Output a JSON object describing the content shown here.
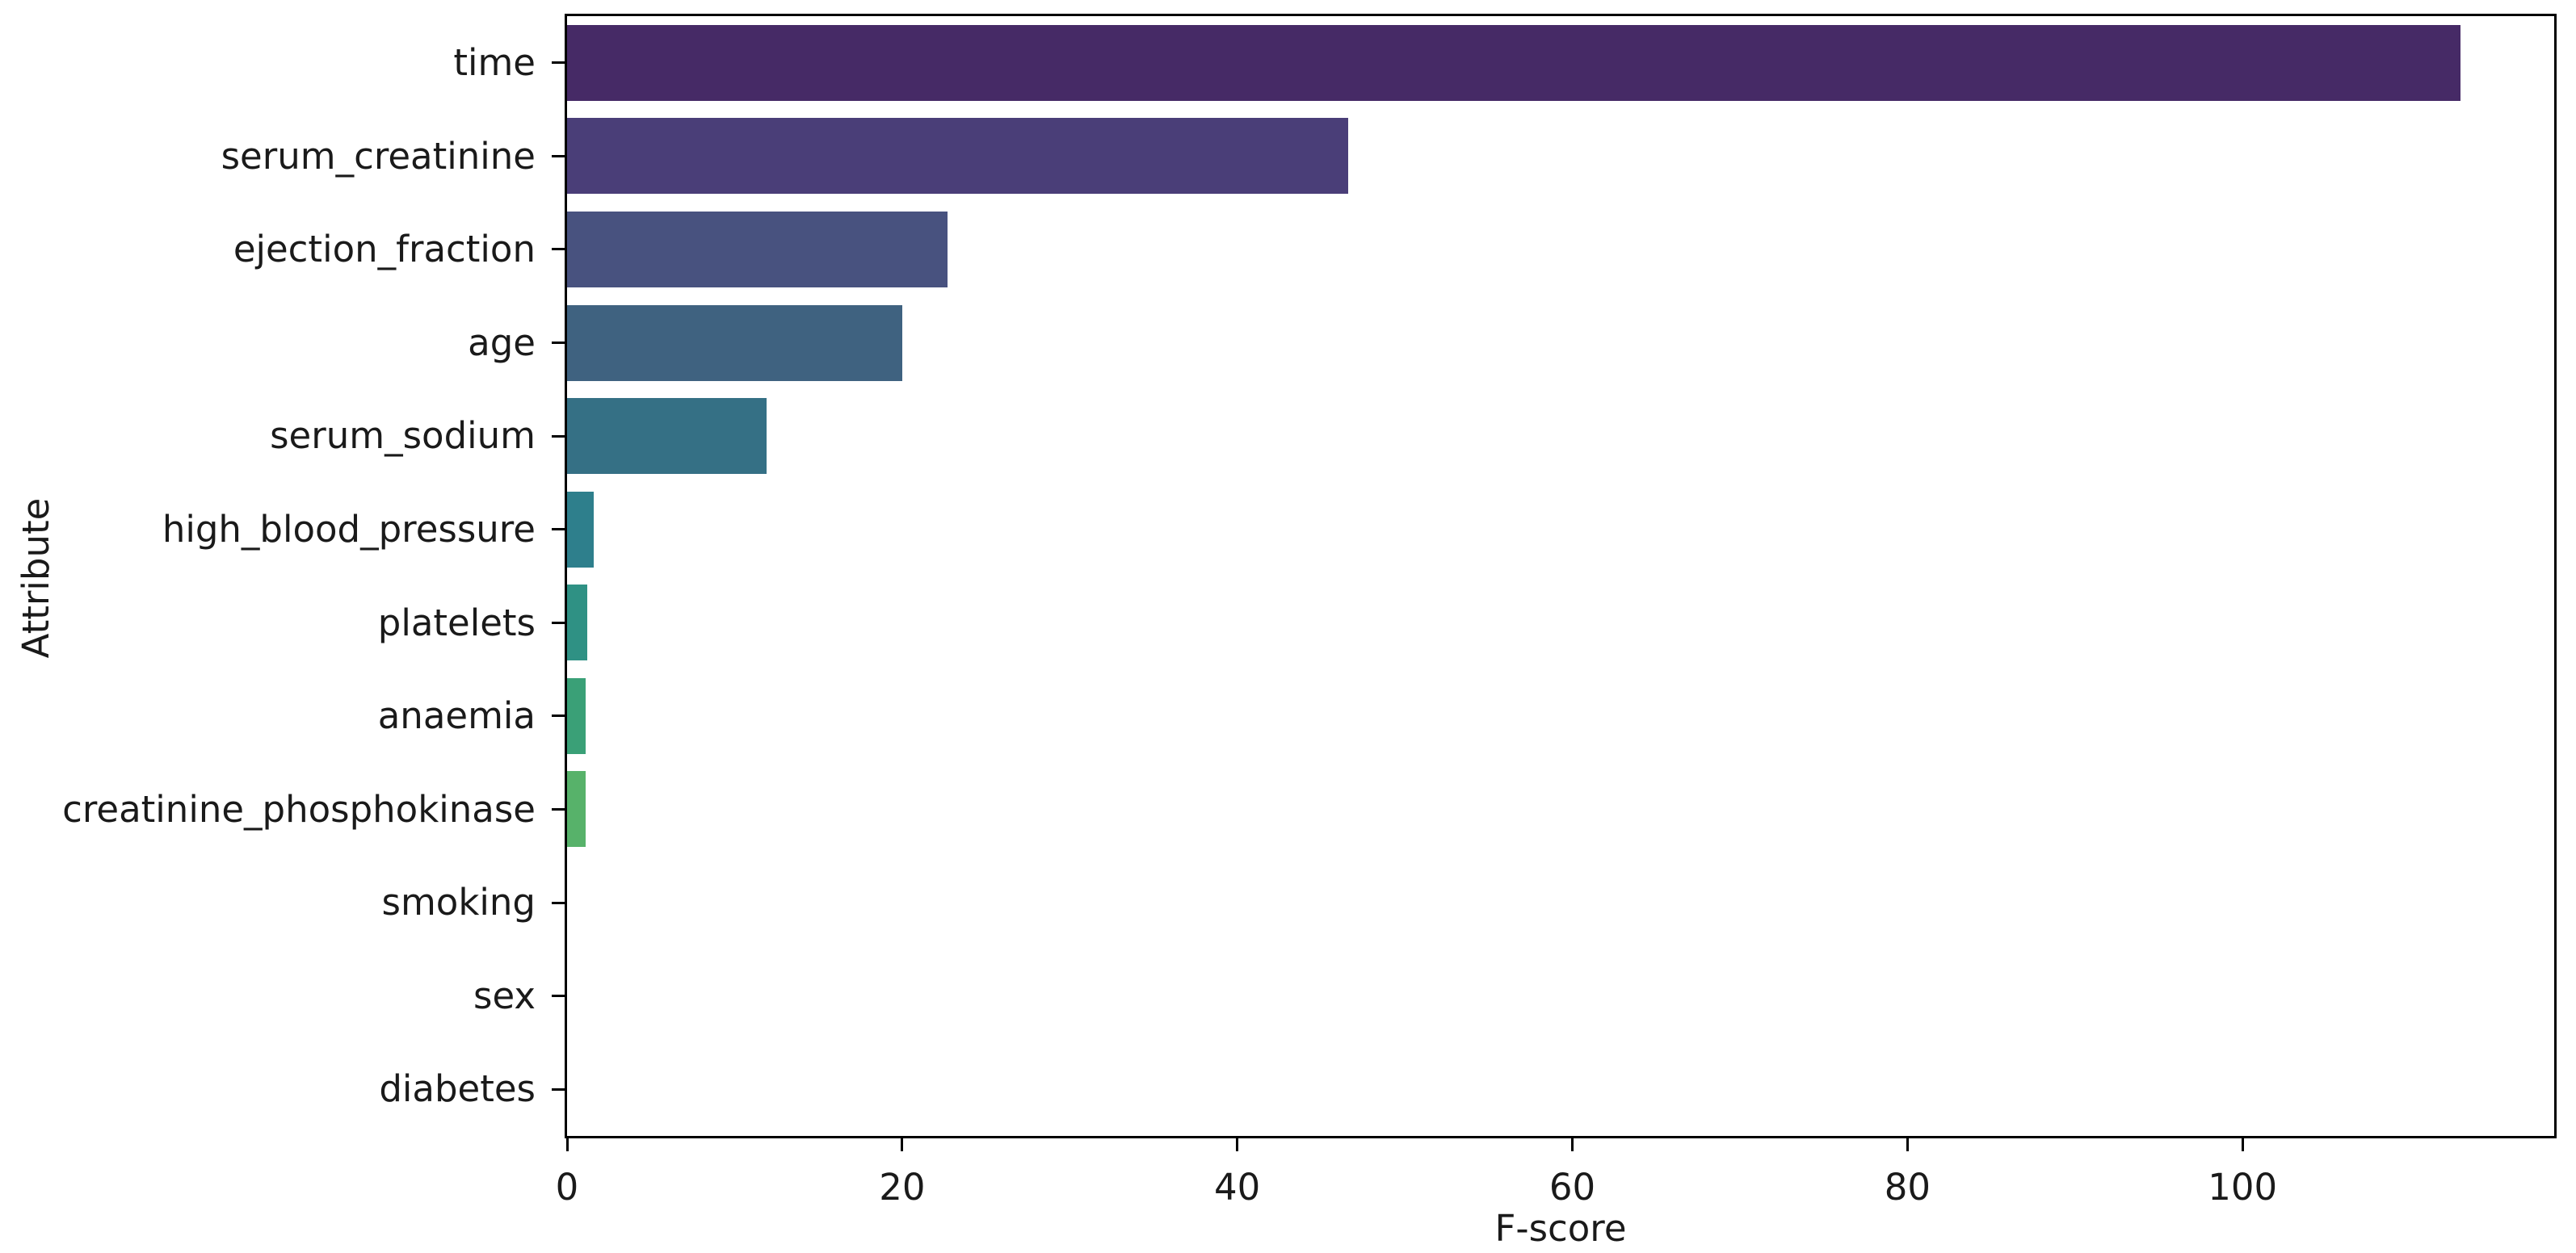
{
  "chart_data": {
    "type": "bar",
    "orientation": "horizontal",
    "title": "",
    "xlabel": "F-score",
    "ylabel": "Attribute",
    "categories": [
      "time",
      "serum_creatinine",
      "ejection_fraction",
      "age",
      "serum_sodium",
      "high_blood_pressure",
      "platelets",
      "anaemia",
      "creatinine_phosphokinase",
      "smoking",
      "sex",
      "diabetes"
    ],
    "values": [
      113.0,
      46.6,
      22.7,
      20.0,
      11.9,
      1.6,
      1.2,
      1.1,
      1.1,
      0.0,
      0.0,
      0.0
    ],
    "colors": [
      "#462a66",
      "#4a3e78",
      "#48527f",
      "#3f6280",
      "#357085",
      "#2e7f8c",
      "#2f9184",
      "#3aa077",
      "#57b26a",
      "#7fc463",
      "#b8d84b",
      "#efdf3f"
    ],
    "x_ticks": [
      0,
      20,
      40,
      60,
      80,
      100
    ],
    "xlim": [
      0,
      118.6
    ],
    "grid": false,
    "legend_position": "none",
    "background_color": "#ffffff",
    "spine_color": "#000000",
    "text_color": "#1a1a1a"
  }
}
